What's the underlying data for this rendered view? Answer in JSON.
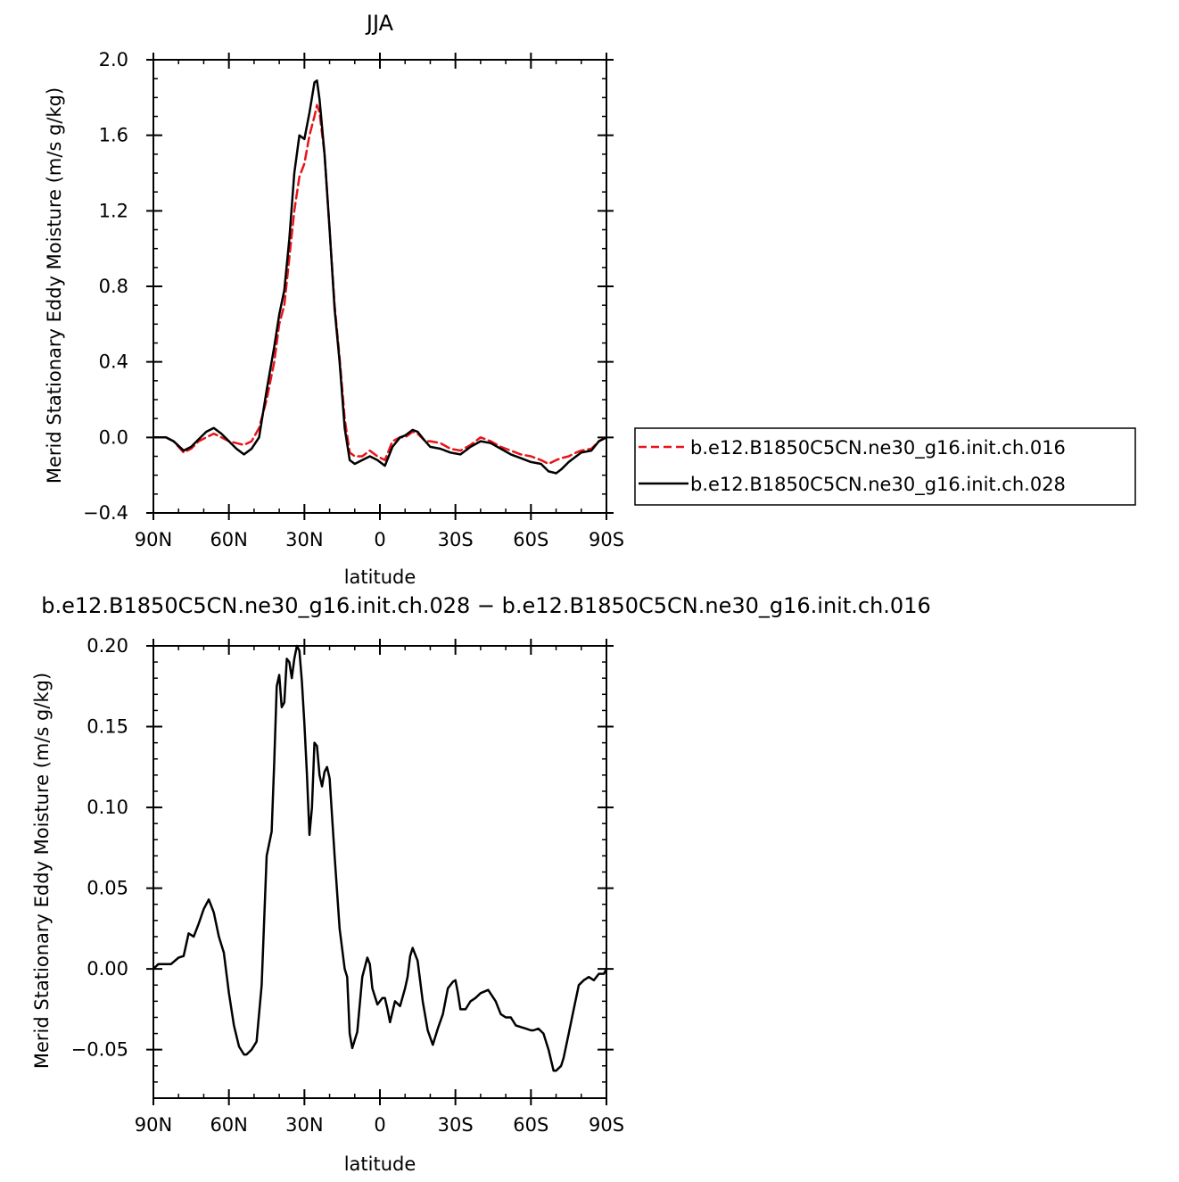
{
  "colors": {
    "series_016": "#e8141a",
    "series_028": "#000000",
    "frame": "#000000"
  },
  "chart_data": [
    {
      "type": "line",
      "title": "JJA",
      "xlabel": "latitude",
      "ylabel": "Merid Stationary Eddy Moisture (m/s g/kg)",
      "xlim": [
        90,
        -90
      ],
      "ylim": [
        -0.4,
        2.0
      ],
      "x_ticks": [
        90,
        60,
        30,
        0,
        -30,
        -60,
        -90
      ],
      "x_tick_labels": [
        "90N",
        "60N",
        "30N",
        "0",
        "30S",
        "60S",
        "90S"
      ],
      "y_ticks": [
        -0.4,
        0.0,
        0.4,
        0.8,
        1.2,
        1.6,
        2.0
      ],
      "y_tick_labels": [
        "−0.4",
        "0.0",
        "0.4",
        "0.8",
        "1.2",
        "1.6",
        "2.0"
      ],
      "legend_position": "right",
      "series": [
        {
          "name": "b.e12.B1850C5CN.ne30_g16.init.ch.016",
          "style": "dashed",
          "color": "#e8141a",
          "x": [
            90,
            85,
            82,
            78,
            75,
            72,
            69,
            66,
            63,
            60,
            57,
            54,
            51,
            48,
            45,
            42,
            40,
            38,
            36,
            34,
            32,
            30,
            28,
            26,
            25,
            24,
            22,
            20,
            18,
            16,
            14,
            12,
            10,
            7,
            4,
            1,
            -2,
            -5,
            -8,
            -10,
            -13,
            -15,
            -18,
            -20,
            -24,
            -28,
            -32,
            -36,
            -40,
            -44,
            -48,
            -52,
            -56,
            -60,
            -64,
            -67,
            -70,
            -72,
            -75,
            -78,
            -80,
            -84,
            -87,
            -90
          ],
          "y": [
            0.0,
            0.0,
            -0.02,
            -0.08,
            -0.06,
            -0.02,
            0.0,
            0.02,
            0.0,
            -0.02,
            -0.03,
            -0.04,
            -0.02,
            0.05,
            0.2,
            0.4,
            0.6,
            0.7,
            0.95,
            1.2,
            1.38,
            1.45,
            1.6,
            1.7,
            1.76,
            1.72,
            1.5,
            1.1,
            0.7,
            0.42,
            0.1,
            -0.08,
            -0.1,
            -0.1,
            -0.07,
            -0.1,
            -0.12,
            -0.02,
            0.0,
            0.0,
            0.03,
            0.02,
            -0.02,
            -0.02,
            -0.03,
            -0.06,
            -0.07,
            -0.04,
            0.0,
            -0.02,
            -0.05,
            -0.07,
            -0.09,
            -0.1,
            -0.12,
            -0.14,
            -0.12,
            -0.11,
            -0.1,
            -0.08,
            -0.07,
            -0.06,
            -0.02,
            0.0
          ]
        },
        {
          "name": "b.e12.B1850C5CN.ne30_g16.init.ch.028",
          "style": "solid",
          "color": "#000000",
          "x": [
            90,
            85,
            82,
            78,
            75,
            72,
            69,
            66,
            63,
            60,
            57,
            54,
            51,
            48,
            45,
            42,
            40,
            38,
            36,
            34,
            32,
            30,
            28,
            26,
            25,
            24,
            22,
            20,
            18,
            16,
            14,
            12,
            10,
            7,
            4,
            1,
            -2,
            -5,
            -8,
            -10,
            -13,
            -15,
            -18,
            -20,
            -24,
            -28,
            -32,
            -36,
            -40,
            -44,
            -48,
            -52,
            -56,
            -60,
            -64,
            -67,
            -70,
            -72,
            -75,
            -78,
            -80,
            -84,
            -87,
            -90
          ],
          "y": [
            0.0,
            0.0,
            -0.02,
            -0.07,
            -0.05,
            -0.01,
            0.03,
            0.05,
            0.02,
            -0.02,
            -0.06,
            -0.09,
            -0.06,
            0.0,
            0.25,
            0.48,
            0.65,
            0.78,
            1.05,
            1.4,
            1.6,
            1.58,
            1.72,
            1.88,
            1.89,
            1.79,
            1.5,
            1.1,
            0.68,
            0.4,
            0.05,
            -0.12,
            -0.14,
            -0.12,
            -0.1,
            -0.12,
            -0.15,
            -0.05,
            0.0,
            0.01,
            0.04,
            0.03,
            -0.02,
            -0.05,
            -0.06,
            -0.08,
            -0.09,
            -0.05,
            -0.02,
            -0.03,
            -0.06,
            -0.09,
            -0.11,
            -0.13,
            -0.14,
            -0.18,
            -0.19,
            -0.17,
            -0.13,
            -0.1,
            -0.08,
            -0.07,
            -0.02,
            0.0
          ]
        }
      ]
    },
    {
      "type": "line",
      "title": "b.e12.B1850C5CN.ne30_g16.init.ch.028  −  b.e12.B1850C5CN.ne30_g16.init.ch.016",
      "xlabel": "latitude",
      "ylabel": "Merid Stationary Eddy Moisture (m/s g/kg)",
      "xlim": [
        90,
        -90
      ],
      "ylim": [
        -0.08,
        0.2
      ],
      "x_ticks": [
        90,
        60,
        30,
        0,
        -30,
        -60,
        -90
      ],
      "x_tick_labels": [
        "90N",
        "60N",
        "30N",
        "0",
        "30S",
        "60S",
        "90S"
      ],
      "y_ticks": [
        -0.05,
        0.0,
        0.05,
        0.1,
        0.15,
        0.2
      ],
      "y_tick_labels": [
        "−0.05",
        "0.00",
        "0.05",
        "0.10",
        "0.15",
        "0.20"
      ],
      "series": [
        {
          "style": "solid",
          "color": "#000000",
          "x": [
            90,
            88,
            85,
            83,
            80,
            78,
            76,
            74,
            72,
            70,
            68,
            66,
            64,
            62,
            60,
            58,
            56,
            54,
            53,
            51,
            49,
            47,
            45,
            43,
            42,
            41,
            40,
            39,
            38,
            37,
            36,
            35,
            34,
            33,
            32,
            31,
            30,
            29,
            28,
            27,
            26,
            25,
            24,
            23,
            22,
            21,
            20,
            18,
            16,
            14,
            13,
            12,
            11,
            9,
            7,
            5,
            4,
            3,
            1,
            0,
            -1,
            -2,
            -3,
            -4,
            -6,
            -8,
            -10,
            -11,
            -12,
            -13,
            -15,
            -17,
            -19,
            -21,
            -23,
            -25,
            -27,
            -29,
            -30,
            -31,
            -32,
            -34,
            -36,
            -38,
            -40,
            -43,
            -46,
            -48,
            -50,
            -52,
            -54,
            -56,
            -58,
            -60,
            -61,
            -63,
            -65,
            -67,
            -69,
            -70,
            -72,
            -73,
            -75,
            -77,
            -79,
            -81,
            -83,
            -85,
            -87,
            -89,
            -90
          ],
          "y": [
            0.0,
            0.003,
            0.003,
            0.003,
            0.007,
            0.008,
            0.022,
            0.02,
            0.028,
            0.037,
            0.043,
            0.035,
            0.02,
            0.01,
            -0.015,
            -0.035,
            -0.048,
            -0.053,
            -0.053,
            -0.05,
            -0.045,
            -0.01,
            0.07,
            0.085,
            0.128,
            0.175,
            0.182,
            0.162,
            0.165,
            0.192,
            0.19,
            0.18,
            0.192,
            0.2,
            0.197,
            0.178,
            0.152,
            0.12,
            0.083,
            0.1,
            0.14,
            0.138,
            0.12,
            0.113,
            0.122,
            0.125,
            0.118,
            0.07,
            0.025,
            0.0,
            -0.005,
            -0.04,
            -0.049,
            -0.039,
            -0.005,
            0.007,
            0.003,
            -0.012,
            -0.022,
            -0.02,
            -0.018,
            -0.018,
            -0.025,
            -0.033,
            -0.02,
            -0.023,
            -0.012,
            -0.005,
            0.008,
            0.013,
            0.005,
            -0.02,
            -0.038,
            -0.047,
            -0.037,
            -0.028,
            -0.012,
            -0.008,
            -0.007,
            -0.015,
            -0.025,
            -0.025,
            -0.02,
            -0.018,
            -0.015,
            -0.013,
            -0.02,
            -0.028,
            -0.03,
            -0.03,
            -0.035,
            -0.036,
            -0.037,
            -0.038,
            -0.038,
            -0.037,
            -0.04,
            -0.05,
            -0.063,
            -0.063,
            -0.06,
            -0.055,
            -0.04,
            -0.025,
            -0.01,
            -0.007,
            -0.005,
            -0.007,
            -0.003,
            -0.003,
            0.0
          ]
        }
      ]
    }
  ]
}
